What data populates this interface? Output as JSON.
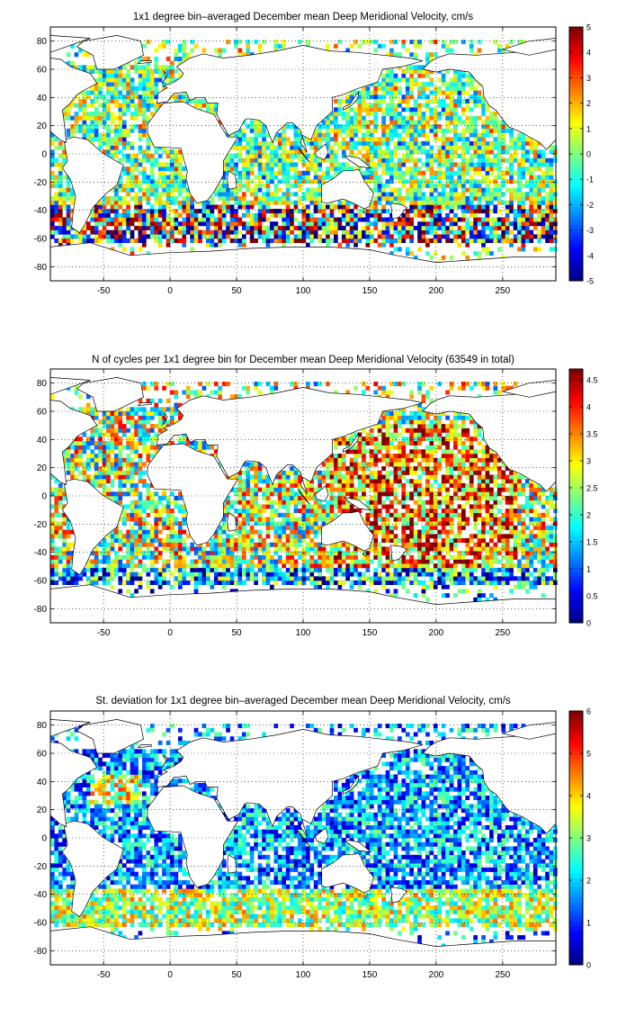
{
  "chart_data": [
    {
      "type": "heatmap",
      "title": "1x1 degree bin–averaged December mean Deep Meridional Velocity, cm/s",
      "xlim": [
        -90,
        290
      ],
      "ylim": [
        -90,
        90
      ],
      "x_ticks": [
        "-50",
        "0",
        "50",
        "100",
        "150",
        "200",
        "250"
      ],
      "x_tick_values": [
        -50,
        0,
        50,
        100,
        150,
        200,
        250
      ],
      "y_ticks": [
        "80",
        "60",
        "40",
        "20",
        "0",
        "-20",
        "-40",
        "-60",
        "-80"
      ],
      "y_tick_values": [
        80,
        60,
        40,
        20,
        0,
        -20,
        -40,
        -60,
        -80
      ],
      "grid": true,
      "colormap": "jet",
      "colorbar": {
        "min": -5,
        "max": 5,
        "ticks": [
          "5",
          "4",
          "3",
          "2",
          "1",
          "0",
          "-1",
          "-2",
          "-3",
          "-4",
          "-5"
        ],
        "tick_values": [
          5,
          4,
          3,
          2,
          1,
          0,
          -1,
          -2,
          -3,
          -4,
          -5
        ]
      },
      "value_mode": "centered"
    },
    {
      "type": "heatmap",
      "title": "N of cycles per 1x1 degree bin for December mean Deep Meridional Velocity (63549 in total)",
      "xlim": [
        -90,
        290
      ],
      "ylim": [
        -90,
        90
      ],
      "x_ticks": [
        "-50",
        "0",
        "50",
        "100",
        "150",
        "200",
        "250"
      ],
      "x_tick_values": [
        -50,
        0,
        50,
        100,
        150,
        200,
        250
      ],
      "y_ticks": [
        "80",
        "60",
        "40",
        "20",
        "0",
        "-20",
        "-40",
        "-60",
        "-80"
      ],
      "y_tick_values": [
        80,
        60,
        40,
        20,
        0,
        -20,
        -40,
        -60,
        -80
      ],
      "grid": true,
      "colormap": "jet",
      "colorbar": {
        "min": 0,
        "max": 4.7,
        "ticks": [
          "4.5",
          "4",
          "3.5",
          "3",
          "2.5",
          "2",
          "1.5",
          "1",
          "0.5",
          "0"
        ],
        "tick_values": [
          4.5,
          4,
          3.5,
          3,
          2.5,
          2,
          1.5,
          1,
          0.5,
          0
        ]
      },
      "value_mode": "count"
    },
    {
      "type": "heatmap",
      "title": "St. deviation for 1x1 degree bin–averaged December mean Deep Meridional Velocity, cm/s",
      "xlim": [
        -90,
        290
      ],
      "ylim": [
        -90,
        90
      ],
      "x_ticks": [
        "-50",
        "0",
        "50",
        "100",
        "150",
        "200",
        "250"
      ],
      "x_tick_values": [
        -50,
        0,
        50,
        100,
        150,
        200,
        250
      ],
      "y_ticks": [
        "80",
        "60",
        "40",
        "20",
        "0",
        "-20",
        "-40",
        "-60",
        "-80"
      ],
      "y_tick_values": [
        80,
        60,
        40,
        20,
        0,
        -20,
        -40,
        -60,
        -80
      ],
      "grid": true,
      "colormap": "jet",
      "colorbar": {
        "min": 0,
        "max": 6,
        "ticks": [
          "6",
          "5",
          "4",
          "3",
          "2",
          "1",
          "0"
        ],
        "tick_values": [
          6,
          5,
          4,
          3,
          2,
          1,
          0
        ]
      },
      "value_mode": "stdev"
    }
  ]
}
